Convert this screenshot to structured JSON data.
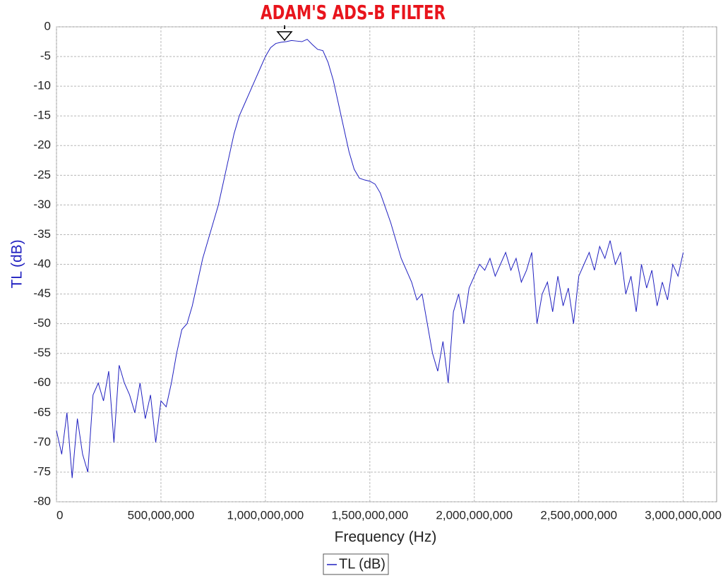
{
  "chart_data": {
    "type": "line",
    "title": "ADAM'S ADS-B FILTER",
    "title_color": "#e8141c",
    "xlabel": "Frequency (Hz)",
    "ylabel": "TL (dB)",
    "x": [
      0,
      25000000,
      50000000,
      75000000,
      100000000,
      125000000,
      150000000,
      175000000,
      200000000,
      225000000,
      250000000,
      275000000,
      300000000,
      325000000,
      350000000,
      375000000,
      400000000,
      425000000,
      450000000,
      475000000,
      500000000,
      525000000,
      550000000,
      575000000,
      600000000,
      625000000,
      650000000,
      675000000,
      700000000,
      725000000,
      750000000,
      775000000,
      800000000,
      825000000,
      850000000,
      875000000,
      900000000,
      925000000,
      950000000,
      975000000,
      1000000000,
      1025000000,
      1050000000,
      1075000000,
      1100000000,
      1125000000,
      1150000000,
      1175000000,
      1200000000,
      1225000000,
      1250000000,
      1275000000,
      1300000000,
      1325000000,
      1350000000,
      1375000000,
      1400000000,
      1425000000,
      1450000000,
      1475000000,
      1500000000,
      1525000000,
      1550000000,
      1575000000,
      1600000000,
      1625000000,
      1650000000,
      1675000000,
      1700000000,
      1725000000,
      1750000000,
      1775000000,
      1800000000,
      1825000000,
      1850000000,
      1875000000,
      1900000000,
      1925000000,
      1950000000,
      1975000000,
      2000000000,
      2025000000,
      2050000000,
      2075000000,
      2100000000,
      2125000000,
      2150000000,
      2175000000,
      2200000000,
      2225000000,
      2250000000,
      2275000000,
      2300000000,
      2325000000,
      2350000000,
      2375000000,
      2400000000,
      2425000000,
      2450000000,
      2475000000,
      2500000000,
      2525000000,
      2550000000,
      2575000000,
      2600000000,
      2625000000,
      2650000000,
      2675000000,
      2700000000,
      2725000000,
      2750000000,
      2775000000,
      2800000000,
      2825000000,
      2850000000,
      2875000000,
      2900000000,
      2925000000,
      2950000000,
      2975000000,
      3000000000
    ],
    "series": [
      {
        "name": "TL (dB)",
        "color": "#2020c0",
        "values": [
          -68,
          -72,
          -65,
          -76,
          -66,
          -72,
          -75,
          -62,
          -60,
          -63,
          -58,
          -70,
          -57,
          -60,
          -62,
          -65,
          -60,
          -66,
          -62,
          -70,
          -63,
          -64,
          -60,
          -55,
          -51,
          -50,
          -47,
          -43,
          -39,
          -36,
          -33,
          -30,
          -26,
          -22,
          -18,
          -15,
          -13,
          -11,
          -9,
          -7,
          -5,
          -3.5,
          -2.8,
          -2.6,
          -2.5,
          -2.3,
          -2.4,
          -2.5,
          -2.1,
          -3,
          -3.8,
          -4,
          -6,
          -9,
          -13,
          -17,
          -21,
          -24,
          -25.5,
          -25.8,
          -26,
          -26.5,
          -28,
          -30.5,
          -33,
          -36,
          -39,
          -41,
          -43,
          -46,
          -45,
          -50,
          -55,
          -58,
          -53,
          -60,
          -48,
          -45,
          -50,
          -44,
          -42,
          -40,
          -41,
          -39,
          -42,
          -40,
          -38,
          -41,
          -39,
          -43,
          -41,
          -38,
          -50,
          -45,
          -43,
          -48,
          -42,
          -47,
          -44,
          -50,
          -42,
          -40,
          -38,
          -41,
          -37,
          -39,
          -36,
          -40,
          -38,
          -45,
          -42,
          -48,
          -40,
          -44,
          -41,
          -47,
          -43,
          -46,
          -40,
          -42,
          -38
        ]
      }
    ],
    "xlim": [
      0,
      3160000000
    ],
    "ylim": [
      -80,
      0
    ],
    "xticks": [
      0,
      {
        "value": 500000000,
        "label": "500,000,000"
      },
      {
        "value": 1000000000,
        "label": "1,000,000,000"
      },
      {
        "value": 1500000000,
        "label": "1,500,000,000"
      },
      {
        "value": 2000000000,
        "label": "2,000,000,000"
      },
      {
        "value": 2500000000,
        "label": "2,500,000,000"
      },
      {
        "value": 3000000000,
        "label": "3,000,000,000"
      }
    ],
    "yticks": [
      0,
      -5,
      -10,
      -15,
      -20,
      -25,
      -30,
      -35,
      -40,
      -45,
      -50,
      -55,
      -60,
      -65,
      -70,
      -75,
      -80
    ],
    "grid": true,
    "legend": "bottom"
  }
}
